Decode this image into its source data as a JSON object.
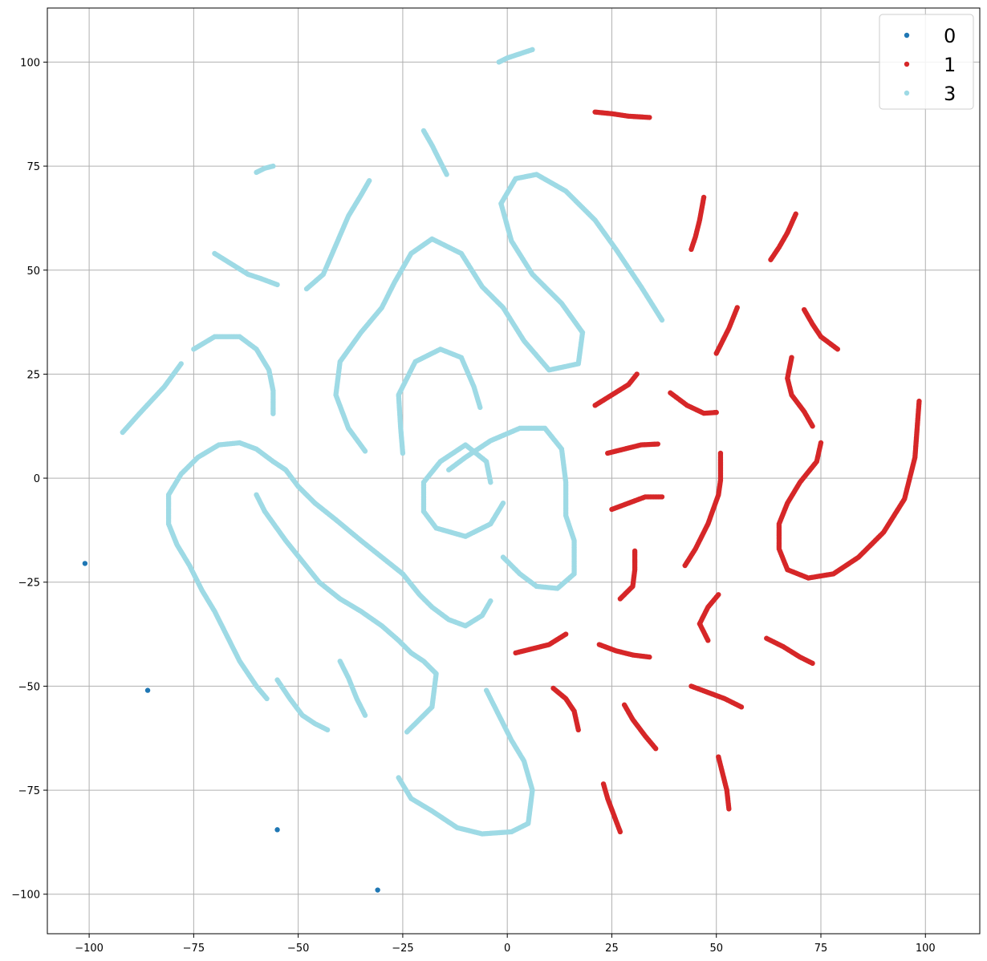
{
  "chart_data": {
    "type": "scatter",
    "title": "",
    "xlabel": "",
    "ylabel": "",
    "xlim": [
      -110,
      113
    ],
    "ylim": [
      -109.5,
      113
    ],
    "grid": true,
    "legend_position": "top-right",
    "x_ticks": [
      -100,
      -75,
      -50,
      -25,
      0,
      25,
      50,
      75,
      100
    ],
    "y_ticks": [
      -100,
      -75,
      -50,
      -25,
      0,
      25,
      50,
      75,
      100
    ],
    "x_tick_labels": [
      "−100",
      "−75",
      "−50",
      "−25",
      "0",
      "25",
      "50",
      "75",
      "100"
    ],
    "y_tick_labels": [
      "−100",
      "−75",
      "−50",
      "−25",
      "0",
      "25",
      "50",
      "75",
      "100"
    ],
    "series": [
      {
        "name": "0",
        "color": "#1f77b4",
        "points": [
          [
            -101,
            -20.5
          ],
          [
            -86,
            -51
          ],
          [
            -55,
            -84.5
          ],
          [
            -31,
            -99
          ]
        ],
        "curves": []
      },
      {
        "name": "1",
        "color": "#d62728",
        "points": [],
        "curves": [
          [
            [
              21,
              88
            ],
            [
              25,
              87.6
            ],
            [
              29,
              87
            ],
            [
              34,
              86.7
            ]
          ],
          [
            [
              44,
              55
            ],
            [
              45,
              58
            ],
            [
              46,
              62
            ],
            [
              47,
              67.5
            ]
          ],
          [
            [
              63,
              52.5
            ],
            [
              65,
              55.5
            ],
            [
              67,
              59
            ],
            [
              69,
              63.5
            ]
          ],
          [
            [
              50,
              30
            ],
            [
              51,
              32
            ],
            [
              53,
              36
            ],
            [
              55,
              41
            ]
          ],
          [
            [
              71,
              40.5
            ],
            [
              73,
              37
            ],
            [
              75,
              34
            ],
            [
              79,
              31
            ]
          ],
          [
            [
              21,
              17.5
            ],
            [
              25,
              20
            ],
            [
              29,
              22.5
            ],
            [
              31,
              25
            ]
          ],
          [
            [
              39,
              20.5
            ],
            [
              43,
              17.5
            ],
            [
              47,
              15.6
            ],
            [
              50,
              15.8
            ]
          ],
          [
            [
              68,
              29
            ],
            [
              67,
              24
            ],
            [
              68,
              20
            ],
            [
              71,
              16
            ],
            [
              73,
              12.5
            ]
          ],
          [
            [
              24,
              6
            ],
            [
              28,
              7
            ],
            [
              32,
              8
            ],
            [
              36,
              8.2
            ]
          ],
          [
            [
              25,
              -7.5
            ],
            [
              29,
              -6
            ],
            [
              33,
              -4.5
            ],
            [
              37,
              -4.5
            ]
          ],
          [
            [
              51,
              6
            ],
            [
              51,
              3
            ],
            [
              51,
              -0.5
            ],
            [
              50.5,
              -4
            ],
            [
              48,
              -11
            ],
            [
              45,
              -17
            ],
            [
              42.5,
              -21
            ]
          ],
          [
            [
              75,
              8.5
            ],
            [
              74,
              4
            ],
            [
              70,
              -1
            ],
            [
              67,
              -6
            ],
            [
              65,
              -11
            ],
            [
              65,
              -17
            ],
            [
              67,
              -22
            ],
            [
              72,
              -24
            ],
            [
              78,
              -23
            ],
            [
              84,
              -19
            ],
            [
              90,
              -13
            ],
            [
              95,
              -5
            ],
            [
              97.5,
              5
            ],
            [
              98.5,
              18.5
            ]
          ],
          [
            [
              27,
              -29
            ],
            [
              30,
              -26
            ],
            [
              30.5,
              -22
            ],
            [
              30.5,
              -17.5
            ]
          ],
          [
            [
              2,
              -42
            ],
            [
              6,
              -41
            ],
            [
              10,
              -40
            ],
            [
              14,
              -37.5
            ]
          ],
          [
            [
              22,
              -40
            ],
            [
              26,
              -41.5
            ],
            [
              30,
              -42.5
            ],
            [
              34,
              -43
            ]
          ],
          [
            [
              50.5,
              -28
            ],
            [
              48,
              -31
            ],
            [
              46,
              -35
            ],
            [
              48,
              -39
            ]
          ],
          [
            [
              62,
              -38.5
            ],
            [
              66,
              -40.5
            ],
            [
              70,
              -43
            ],
            [
              73,
              -44.5
            ]
          ],
          [
            [
              11,
              -50.5
            ],
            [
              14,
              -53
            ],
            [
              16,
              -56
            ],
            [
              17,
              -60.5
            ]
          ],
          [
            [
              44,
              -50
            ],
            [
              48,
              -51.5
            ],
            [
              52,
              -53
            ],
            [
              56,
              -55
            ]
          ],
          [
            [
              28,
              -54.5
            ],
            [
              30,
              -58
            ],
            [
              33,
              -62
            ],
            [
              35.5,
              -65
            ]
          ],
          [
            [
              50.5,
              -67
            ],
            [
              51.5,
              -71
            ],
            [
              52.5,
              -75
            ],
            [
              53,
              -79.5
            ]
          ],
          [
            [
              23,
              -73.5
            ],
            [
              24,
              -77
            ],
            [
              25.5,
              -81
            ],
            [
              27,
              -85
            ]
          ]
        ]
      },
      {
        "name": "3",
        "color": "#9edae5",
        "points": [],
        "curves": [
          [
            [
              -2,
              100
            ],
            [
              0,
              101
            ],
            [
              3,
              102
            ],
            [
              6,
              103
            ]
          ],
          [
            [
              -20,
              83.5
            ],
            [
              -18,
              80
            ],
            [
              -16,
              76
            ],
            [
              -14.5,
              73
            ]
          ],
          [
            [
              -60,
              73.5
            ],
            [
              -58,
              74.5
            ],
            [
              -56,
              75
            ]
          ],
          [
            [
              -48,
              45.5
            ],
            [
              -44,
              49
            ],
            [
              -41,
              56
            ],
            [
              -38,
              63
            ],
            [
              -35,
              68
            ],
            [
              -33,
              71.5
            ]
          ],
          [
            [
              -70,
              54
            ],
            [
              -66,
              51.5
            ],
            [
              -62,
              49
            ],
            [
              -59,
              48
            ],
            [
              -55,
              46.5
            ]
          ],
          [
            [
              -25,
              6
            ],
            [
              -25.5,
              12
            ],
            [
              -26,
              20
            ],
            [
              -22,
              28
            ],
            [
              -16,
              31
            ],
            [
              -11,
              29
            ],
            [
              -8,
              22
            ],
            [
              -6.5,
              17
            ]
          ],
          [
            [
              -34,
              6.5
            ],
            [
              -38,
              12
            ],
            [
              -41,
              20
            ],
            [
              -40,
              28
            ],
            [
              -35,
              35
            ],
            [
              -30,
              41
            ],
            [
              -27,
              47
            ],
            [
              -23,
              54
            ],
            [
              -18,
              57.5
            ],
            [
              -11,
              54
            ],
            [
              -6,
              46
            ],
            [
              -1,
              41
            ],
            [
              4,
              33
            ],
            [
              10,
              26
            ],
            [
              17,
              27.5
            ],
            [
              18,
              35
            ],
            [
              13,
              42
            ],
            [
              6,
              49
            ],
            [
              1,
              57
            ],
            [
              -1.5,
              66
            ],
            [
              2,
              72
            ],
            [
              7,
              73
            ],
            [
              14,
              69
            ],
            [
              21,
              62
            ],
            [
              26,
              55
            ],
            [
              32,
              46
            ],
            [
              37,
              38
            ]
          ],
          [
            [
              -92,
              11
            ],
            [
              -88,
              15.5
            ],
            [
              -82,
              22
            ],
            [
              -78,
              27.5
            ]
          ],
          [
            [
              -75,
              31
            ],
            [
              -70,
              34
            ],
            [
              -64,
              34
            ],
            [
              -60,
              31
            ],
            [
              -57,
              26
            ],
            [
              -56,
              21
            ],
            [
              -56,
              15.5
            ]
          ],
          [
            [
              -4,
              -1
            ],
            [
              -5,
              4
            ],
            [
              -10,
              8
            ],
            [
              -16,
              4
            ],
            [
              -20,
              -1
            ],
            [
              -20,
              -8
            ],
            [
              -17,
              -12
            ],
            [
              -10,
              -14
            ],
            [
              -4,
              -11
            ],
            [
              -1,
              -6
            ]
          ],
          [
            [
              -1,
              -19
            ],
            [
              3,
              -23
            ],
            [
              7,
              -26
            ],
            [
              12,
              -26.5
            ],
            [
              16,
              -23
            ],
            [
              16,
              -15
            ],
            [
              14,
              -9
            ],
            [
              14,
              -1
            ],
            [
              13,
              7
            ],
            [
              9,
              12
            ],
            [
              3,
              12
            ],
            [
              -4,
              9
            ],
            [
              -10,
              5
            ],
            [
              -14,
              2
            ]
          ],
          [
            [
              -60,
              -4
            ],
            [
              -58,
              -8
            ],
            [
              -53,
              -15
            ],
            [
              -49,
              -20
            ],
            [
              -45,
              -25
            ],
            [
              -40,
              -29
            ],
            [
              -35,
              -32
            ],
            [
              -30,
              -35.5
            ],
            [
              -26,
              -39
            ],
            [
              -23,
              -42
            ],
            [
              -20,
              -44
            ],
            [
              -17,
              -47
            ],
            [
              -18,
              -55
            ],
            [
              -24,
              -61
            ]
          ],
          [
            [
              -5,
              -51
            ],
            [
              -2,
              -57
            ],
            [
              1,
              -63
            ],
            [
              4,
              -68
            ],
            [
              6,
              -75
            ],
            [
              5,
              -83
            ],
            [
              1,
              -85
            ],
            [
              -6,
              -85.5
            ],
            [
              -12,
              -84
            ],
            [
              -18,
              -80
            ],
            [
              -23,
              -77
            ],
            [
              -26,
              -72
            ]
          ],
          [
            [
              -55,
              -48.5
            ],
            [
              -52,
              -53
            ],
            [
              -49,
              -57
            ],
            [
              -46,
              -59
            ],
            [
              -43,
              -60.5
            ]
          ],
          [
            [
              -40,
              -44
            ],
            [
              -38,
              -48
            ],
            [
              -36,
              -53
            ],
            [
              -34,
              -57
            ]
          ],
          [
            [
              -4,
              -29.5
            ],
            [
              -6,
              -33
            ],
            [
              -10,
              -35.5
            ],
            [
              -14,
              -34
            ],
            [
              -18,
              -31
            ],
            [
              -21,
              -28
            ],
            [
              -25,
              -23
            ],
            [
              -30,
              -19
            ],
            [
              -35,
              -15
            ],
            [
              -41,
              -10
            ],
            [
              -46,
              -6
            ],
            [
              -50,
              -2
            ],
            [
              -53,
              2
            ],
            [
              -56,
              4
            ],
            [
              -60,
              7
            ],
            [
              -64,
              8.5
            ],
            [
              -69,
              8
            ],
            [
              -74,
              5
            ],
            [
              -78,
              1
            ],
            [
              -81,
              -4
            ],
            [
              -81,
              -11
            ],
            [
              -79,
              -16
            ],
            [
              -76,
              -21
            ],
            [
              -73,
              -27
            ],
            [
              -70,
              -32
            ],
            [
              -67,
              -38
            ],
            [
              -64,
              -44
            ],
            [
              -60,
              -50
            ],
            [
              -57.5,
              -53
            ]
          ]
        ]
      }
    ]
  }
}
